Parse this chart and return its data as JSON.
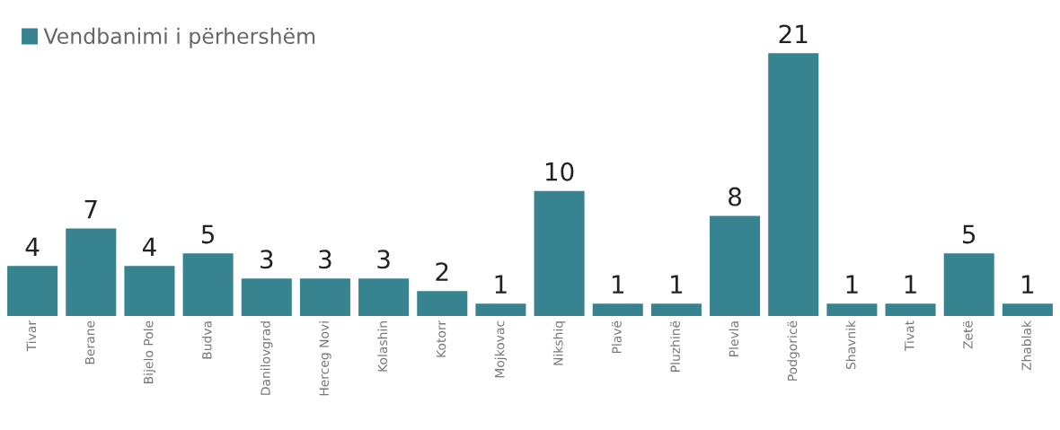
{
  "chart_data": {
    "type": "bar",
    "categories": [
      "Tivar",
      "Berane",
      "Bijelo Pole",
      "Budva",
      "Danilovgrad",
      "Herceg Novi",
      "Kolashin",
      "Kotorr",
      "Mojkovac",
      "Nikshiq",
      "Plavë",
      "Pluzhinë",
      "Plevla",
      "Podgoricë",
      "Shavnik",
      "Tivat",
      "Zetë",
      "Zhablak"
    ],
    "series": [
      {
        "name": "Vendbanimi i përhershëm",
        "color": "#37838f",
        "values": [
          4,
          7,
          4,
          5,
          3,
          3,
          3,
          2,
          1,
          10,
          1,
          1,
          8,
          21,
          1,
          1,
          5,
          1
        ]
      }
    ],
    "data_labels": true,
    "legend": "top left",
    "grid": false
  }
}
